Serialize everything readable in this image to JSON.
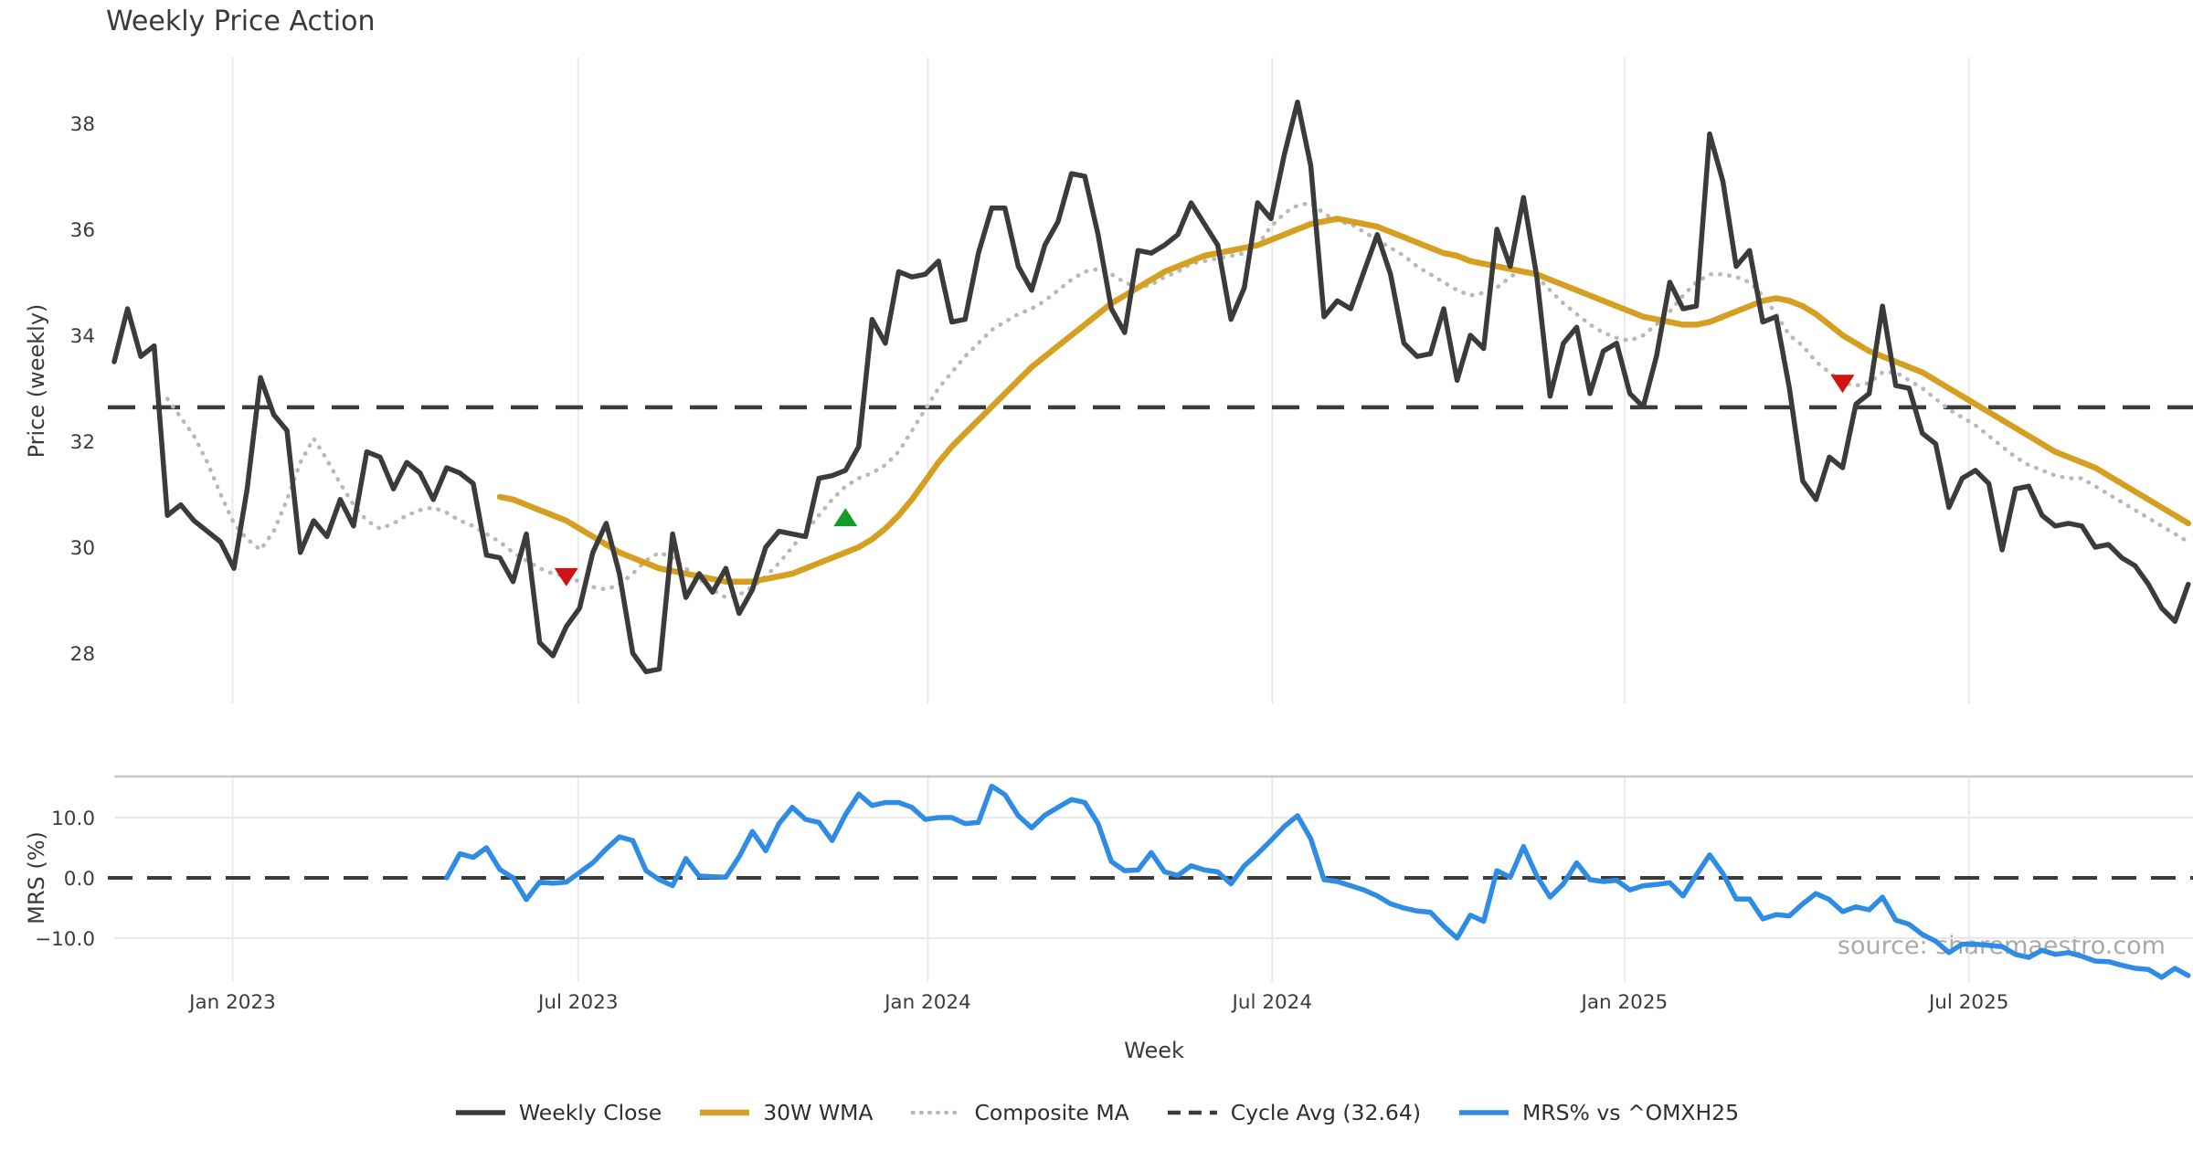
{
  "title": "Weekly Price Action",
  "watermark": "source: sharemaestro.com",
  "colors": {
    "weekly_close": "#3b3b3b",
    "wma30": "#d5a021",
    "composite_ma": "#b9b9b9",
    "cycle_avg": "#3b3b3b",
    "mrs": "#2f8ce4",
    "buy": "#149c24",
    "sell": "#cf1414",
    "grid": "#e9e9e9"
  },
  "axes": {
    "price_label": "Price (weekly)",
    "mrs_label": "MRS (%)",
    "x_label": "Week",
    "price_ticks": [
      38,
      36,
      34,
      32,
      30,
      28
    ],
    "mrs_ticks": [
      {
        "label": "10.0",
        "v": 10
      },
      {
        "label": "0.0",
        "v": 0
      },
      {
        "label": "−10.0",
        "v": -10
      }
    ],
    "x_ticks": [
      {
        "label": "Jan 2023",
        "week": 8.9
      },
      {
        "label": "Jul 2023",
        "week": 34.9
      },
      {
        "label": "Jan 2024",
        "week": 61.2
      },
      {
        "label": "Jul 2024",
        "week": 87.1
      },
      {
        "label": "Jan 2025",
        "week": 113.6
      },
      {
        "label": "Jul 2025",
        "week": 139.5
      }
    ]
  },
  "legend": [
    {
      "label": "Weekly Close",
      "color": "#3b3b3b",
      "style": "solid"
    },
    {
      "label": "30W WMA",
      "color": "#d5a021",
      "style": "solid"
    },
    {
      "label": "Composite MA",
      "color": "#b9b9b9",
      "style": "dotted"
    },
    {
      "label": "Cycle Avg (32.64)",
      "color": "#3b3b3b",
      "style": "dashed"
    },
    {
      "label": "MRS% vs ^OMXH25",
      "color": "#2f8ce4",
      "style": "solid"
    }
  ],
  "chart_data": [
    {
      "type": "line",
      "panel": "price",
      "ylabel": "Price (weekly)",
      "ylim": [
        27.0,
        39.3
      ],
      "x_unit": "week_index",
      "cycle_avg": 32.64,
      "series": [
        {
          "id": "weekly-close-line",
          "name": "Weekly Close",
          "color": "#3b3b3b",
          "style": "solid",
          "width": 5.5,
          "start_week": 0,
          "values": [
            33.5,
            34.5,
            33.6,
            33.8,
            30.6,
            30.8,
            30.5,
            30.3,
            30.1,
            29.6,
            31.1,
            33.2,
            32.5,
            32.2,
            29.9,
            30.5,
            30.2,
            30.9,
            30.4,
            31.8,
            31.7,
            31.1,
            31.6,
            31.4,
            30.9,
            31.5,
            31.4,
            31.2,
            29.85,
            29.8,
            29.35,
            30.25,
            28.2,
            27.95,
            28.5,
            28.85,
            29.9,
            30.45,
            29.5,
            28.0,
            27.65,
            27.7,
            30.25,
            29.05,
            29.5,
            29.15,
            29.6,
            28.75,
            29.2,
            30.0,
            30.3,
            30.25,
            30.2,
            31.3,
            31.35,
            31.45,
            31.9,
            34.3,
            33.85,
            35.2,
            35.1,
            35.15,
            35.4,
            34.25,
            34.3,
            35.55,
            36.4,
            36.4,
            35.3,
            34.85,
            35.7,
            36.15,
            37.05,
            37.0,
            35.9,
            34.5,
            34.05,
            35.6,
            35.55,
            35.7,
            35.9,
            36.5,
            36.1,
            35.7,
            34.3,
            34.9,
            36.5,
            36.2,
            37.4,
            38.4,
            37.2,
            34.35,
            34.65,
            34.5,
            35.2,
            35.9,
            35.15,
            33.85,
            33.6,
            33.65,
            34.5,
            33.15,
            34.0,
            33.75,
            36.0,
            35.3,
            36.6,
            35.1,
            32.85,
            33.85,
            34.15,
            32.9,
            33.7,
            33.85,
            32.9,
            32.65,
            33.6,
            35.0,
            34.5,
            34.55,
            37.8,
            36.9,
            35.3,
            35.6,
            34.25,
            34.35,
            33.0,
            31.25,
            30.9,
            31.7,
            31.5,
            32.7,
            32.9,
            34.55,
            33.05,
            33.0,
            32.15,
            31.95,
            30.75,
            31.3,
            31.45,
            31.2,
            29.95,
            31.1,
            31.15,
            30.6,
            30.4,
            30.45,
            30.4,
            30.0,
            30.05,
            29.8,
            29.65,
            29.3,
            28.85,
            28.6,
            29.3
          ]
        },
        {
          "id": "wma30-line",
          "name": "30W WMA",
          "color": "#d5a021",
          "style": "solid",
          "width": 6.5,
          "start_week": 29,
          "values": [
            30.95,
            30.9,
            30.8,
            30.7,
            30.6,
            30.5,
            30.35,
            30.2,
            30.05,
            29.9,
            29.8,
            29.7,
            29.6,
            29.55,
            29.5,
            29.45,
            29.4,
            29.35,
            29.35,
            29.35,
            29.4,
            29.45,
            29.5,
            29.6,
            29.7,
            29.8,
            29.9,
            30.0,
            30.15,
            30.35,
            30.6,
            30.9,
            31.25,
            31.6,
            31.9,
            32.15,
            32.4,
            32.65,
            32.9,
            33.15,
            33.4,
            33.6,
            33.8,
            34.0,
            34.2,
            34.4,
            34.6,
            34.75,
            34.9,
            35.05,
            35.2,
            35.3,
            35.4,
            35.5,
            35.55,
            35.6,
            35.65,
            35.7,
            35.8,
            35.9,
            36.0,
            36.1,
            36.15,
            36.2,
            36.15,
            36.1,
            36.05,
            35.95,
            35.85,
            35.75,
            35.65,
            35.55,
            35.5,
            35.4,
            35.35,
            35.3,
            35.25,
            35.2,
            35.15,
            35.05,
            34.95,
            34.85,
            34.75,
            34.65,
            34.55,
            34.45,
            34.35,
            34.3,
            34.25,
            34.2,
            34.2,
            34.25,
            34.35,
            34.45,
            34.55,
            34.65,
            34.7,
            34.65,
            34.55,
            34.4,
            34.2,
            34.0,
            33.85,
            33.7,
            33.6,
            33.5,
            33.4,
            33.3,
            33.15,
            33.0,
            32.85,
            32.7,
            32.55,
            32.4,
            32.25,
            32.1,
            31.95,
            31.8,
            31.7,
            31.6,
            31.5,
            31.35,
            31.2,
            31.05,
            30.9,
            30.75,
            30.6,
            30.45
          ]
        },
        {
          "id": "composite-ma-line",
          "name": "Composite MA",
          "color": "#b9b9b9",
          "style": "dotted",
          "width": 4.5,
          "start_week": 4,
          "values": [
            32.8,
            32.45,
            32.1,
            31.6,
            31.0,
            30.45,
            30.15,
            29.95,
            30.3,
            30.9,
            31.6,
            32.05,
            31.65,
            31.2,
            30.8,
            30.5,
            30.35,
            30.45,
            30.6,
            30.7,
            30.75,
            30.65,
            30.5,
            30.4,
            30.25,
            30.1,
            29.9,
            29.75,
            29.6,
            29.5,
            29.45,
            29.35,
            29.25,
            29.2,
            29.3,
            29.5,
            29.75,
            29.9,
            29.8,
            29.6,
            29.4,
            29.2,
            29.05,
            29.1,
            29.25,
            29.45,
            29.7,
            30.0,
            30.3,
            30.6,
            30.9,
            31.15,
            31.3,
            31.4,
            31.55,
            31.8,
            32.2,
            32.6,
            33.0,
            33.3,
            33.6,
            33.85,
            34.1,
            34.25,
            34.4,
            34.5,
            34.65,
            34.85,
            35.05,
            35.2,
            35.25,
            35.15,
            35.0,
            34.9,
            34.95,
            35.1,
            35.2,
            35.35,
            35.4,
            35.45,
            35.5,
            35.55,
            35.7,
            36.05,
            36.3,
            36.45,
            36.5,
            36.3,
            36.15,
            36.1,
            35.95,
            35.8,
            35.65,
            35.5,
            35.3,
            35.15,
            35.0,
            34.85,
            34.75,
            34.8,
            34.9,
            35.1,
            35.25,
            35.1,
            34.85,
            34.6,
            34.4,
            34.2,
            34.05,
            33.95,
            33.9,
            34.0,
            34.2,
            34.45,
            34.75,
            35.0,
            35.15,
            35.15,
            35.1,
            35.0,
            34.75,
            34.4,
            34.0,
            33.8,
            33.5,
            33.3,
            33.1,
            33.05,
            33.1,
            33.3,
            33.3,
            33.15,
            33.0,
            32.8,
            32.6,
            32.45,
            32.3,
            32.1,
            31.9,
            31.7,
            31.55,
            31.45,
            31.35,
            31.3,
            31.3,
            31.15,
            31.0,
            30.85,
            30.7,
            30.55,
            30.4,
            30.25,
            30.1
          ]
        }
      ],
      "signals": [
        {
          "type": "sell",
          "week": 34,
          "value": 29.45
        },
        {
          "type": "buy",
          "week": 55,
          "value": 30.55
        },
        {
          "type": "sell",
          "week": 130,
          "value": 33.1
        }
      ]
    },
    {
      "type": "line",
      "panel": "mrs",
      "ylabel": "MRS (%)",
      "ylim": [
        -17.3,
        16.8
      ],
      "zero_line": 0,
      "series": [
        {
          "id": "mrs-line",
          "name": "MRS% vs ^OMXH25",
          "color": "#2f8ce4",
          "style": "solid",
          "width": 5.5,
          "start_week": 25,
          "values": [
            0.0,
            4.0,
            3.4,
            5.0,
            1.4,
            0.0,
            -3.6,
            -0.7,
            -0.9,
            -0.7,
            0.9,
            2.5,
            4.8,
            6.8,
            6.2,
            1.2,
            -0.3,
            -1.3,
            3.2,
            0.3,
            0.2,
            0.1,
            3.5,
            7.7,
            4.5,
            9.0,
            11.7,
            9.7,
            9.2,
            6.2,
            10.5,
            13.9,
            12.0,
            12.5,
            12.5,
            11.7,
            9.7,
            10.0,
            10.0,
            9.0,
            9.2,
            15.2,
            13.8,
            10.3,
            8.3,
            10.4,
            11.7,
            13.0,
            12.5,
            9.0,
            2.7,
            1.2,
            1.3,
            4.2,
            1.0,
            0.4,
            2.0,
            1.3,
            1.0,
            -1.0,
            2.0,
            4.0,
            6.2,
            8.5,
            10.3,
            6.5,
            -0.3,
            -0.6,
            -1.3,
            -2.0,
            -3.0,
            -4.3,
            -5.0,
            -5.5,
            -5.7,
            -8.0,
            -10.0,
            -6.2,
            -7.2,
            1.2,
            0.1,
            5.2,
            0.3,
            -3.2,
            -1.0,
            2.5,
            -0.3,
            -0.6,
            -0.4,
            -2.0,
            -1.3,
            -1.1,
            -0.8,
            -3.0,
            0.5,
            3.8,
            0.7,
            -3.5,
            -3.5,
            -6.8,
            -6.1,
            -6.3,
            -4.3,
            -2.6,
            -3.6,
            -5.6,
            -4.8,
            -5.3,
            -3.2,
            -7.0,
            -7.7,
            -9.4,
            -10.5,
            -12.4,
            -11.0,
            -11.0,
            -11.2,
            -11.4,
            -12.7,
            -13.2,
            -12.0,
            -12.7,
            -12.4,
            -13.0,
            -13.8,
            -13.9,
            -14.5,
            -15.0,
            -15.2,
            -16.5,
            -15.0,
            -16.2
          ]
        }
      ]
    }
  ]
}
